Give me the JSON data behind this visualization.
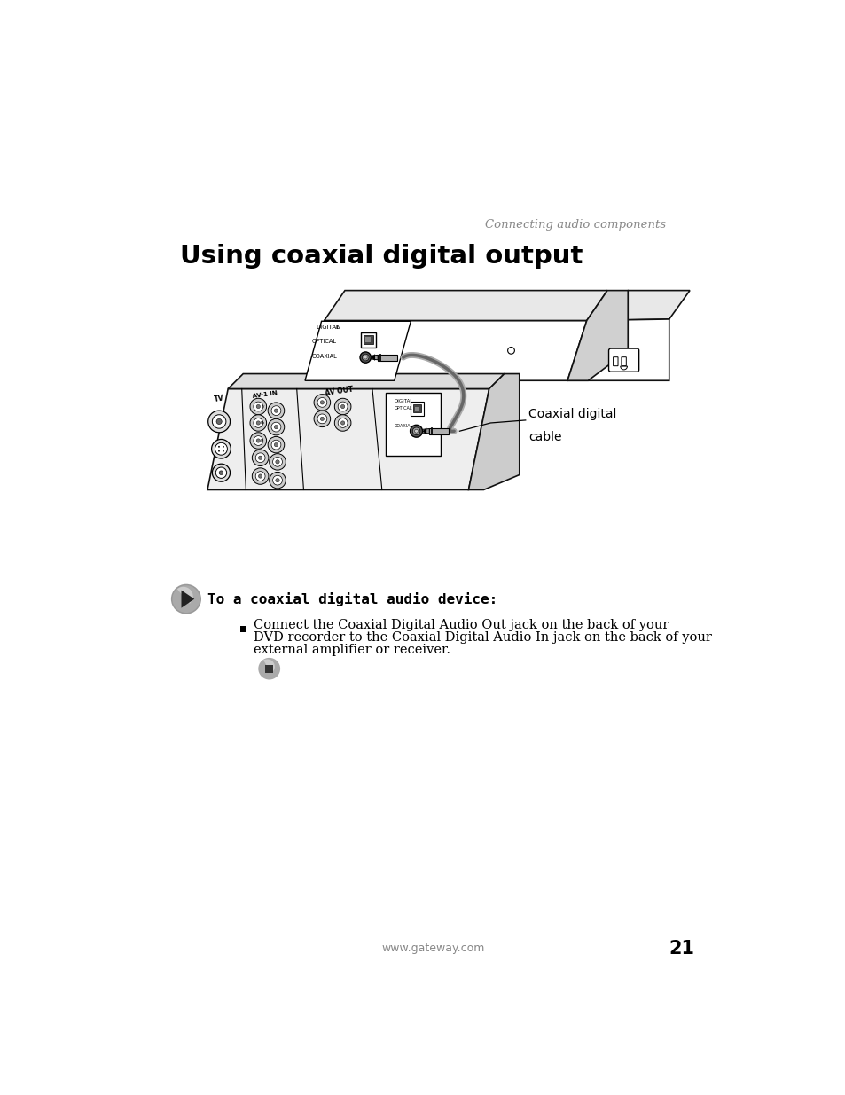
{
  "page_title": "Using coaxial digital output",
  "header_italic": "Connecting audio components",
  "section_heading": "To a coaxial digital audio device:",
  "bullet_line1": "Connect the Coaxial Digital Audio Out jack on the back of your",
  "bullet_line2": "DVD recorder to the Coaxial Digital Audio In jack on the back of your",
  "bullet_line3": "external amplifier or receiver.",
  "annotation_label_1": "Coaxial digital",
  "annotation_label_2": "cable",
  "footer_url": "www.gateway.com",
  "footer_page": "21",
  "bg_color": "#ffffff",
  "text_color": "#000000",
  "header_color": "#888888",
  "panel_light": "#f5f5f5",
  "panel_edge": "#111111",
  "connector_dark": "#444444",
  "connector_mid": "#888888",
  "connector_light": "#cccccc",
  "cable_color": "#999999",
  "icon_gray": "#888888"
}
